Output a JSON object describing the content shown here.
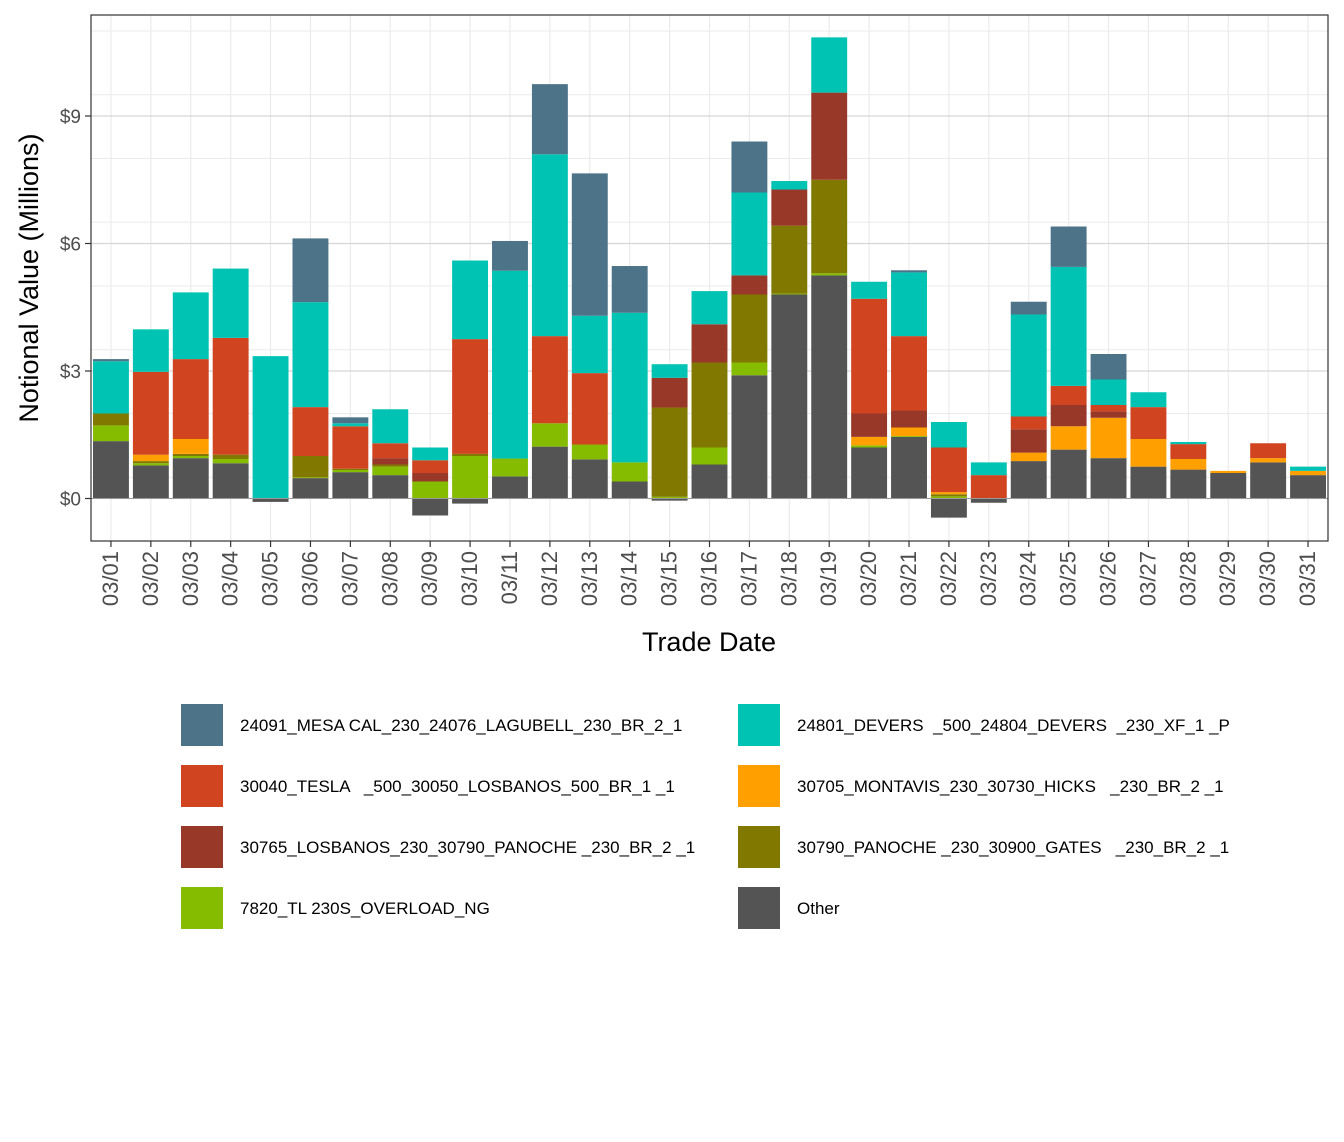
{
  "chart_data": {
    "type": "bar",
    "stacked": true,
    "title": "",
    "xlabel": "Trade Date",
    "ylabel": "Notional Value (Millions)",
    "ylim": [
      -1.0,
      11.0
    ],
    "y_ticks": [
      0,
      3,
      6,
      9
    ],
    "y_tick_labels": [
      "$0",
      "$3",
      "$6",
      "$9"
    ],
    "legend_position": "bottom",
    "categories": [
      "03/01",
      "03/02",
      "03/03",
      "03/04",
      "03/05",
      "03/06",
      "03/07",
      "03/08",
      "03/09",
      "03/10",
      "03/11",
      "03/12",
      "03/13",
      "03/14",
      "03/15",
      "03/16",
      "03/17",
      "03/18",
      "03/19",
      "03/20",
      "03/21",
      "03/22",
      "03/23",
      "03/24",
      "03/25",
      "03/26",
      "03/27",
      "03/28",
      "03/29",
      "03/30",
      "03/31"
    ],
    "series": [
      {
        "key": "other",
        "name": "Other",
        "color": "#545454",
        "values": [
          1.35,
          0.78,
          0.95,
          0.83,
          -0.08,
          0.48,
          0.62,
          0.55,
          -0.4,
          -0.12,
          0.52,
          1.22,
          0.92,
          0.4,
          -0.05,
          0.8,
          2.9,
          4.8,
          5.25,
          1.2,
          1.45,
          -0.45,
          -0.1,
          0.88,
          1.15,
          0.95,
          0.75,
          0.68,
          0.6,
          0.85,
          0.55
        ]
      },
      {
        "key": "7820",
        "name": "7820_TL 230S_OVERLOAD_NG",
        "color": "#85BC00",
        "values": [
          0.37,
          0.05,
          0.05,
          0.1,
          0,
          0.02,
          0.05,
          0.2,
          0.4,
          1.0,
          0.42,
          0.55,
          0.35,
          0.45,
          0.04,
          0.4,
          0.3,
          0.02,
          0.05,
          0.05,
          0.02,
          0.05,
          0,
          0,
          0,
          0,
          0,
          0,
          0,
          0,
          0
        ]
      },
      {
        "key": "30790",
        "name": "30790_PANOCHE _230_30900_GATES   _230_BR_2 _1",
        "color": "#817800",
        "values": [
          0.28,
          0.05,
          0.05,
          0.1,
          0,
          0.5,
          0.03,
          0.05,
          0,
          0.05,
          0,
          0,
          0,
          0,
          2.1,
          2.0,
          1.6,
          1.6,
          2.2,
          0,
          0,
          0.05,
          0,
          0,
          0,
          0,
          0,
          0,
          0,
          0,
          0
        ]
      },
      {
        "key": "30705",
        "name": "30705_MONTAVIS_230_30730_HICKS   _230_BR_2 _1",
        "color": "#FFA000",
        "values": [
          0,
          0.15,
          0.35,
          0,
          0,
          0,
          0,
          0,
          0,
          0,
          0,
          0,
          0,
          0,
          0,
          0,
          0,
          0,
          0,
          0.2,
          0.2,
          0.05,
          0,
          0.2,
          0.55,
          0.95,
          0.65,
          0.25,
          0.05,
          0.1,
          0.1
        ]
      },
      {
        "key": "30765",
        "name": "30765_LOSBANOS_230_30790_PANOCHE _230_BR_2 _1",
        "color": "#983828",
        "values": [
          0,
          0,
          0,
          0,
          0,
          0,
          0,
          0.15,
          0.2,
          0,
          0,
          0,
          0,
          0,
          0.7,
          0.9,
          0.45,
          0.85,
          2.05,
          0.55,
          0.4,
          0,
          0,
          0.55,
          0.5,
          0.15,
          0,
          0,
          0,
          0,
          0
        ]
      },
      {
        "key": "30040",
        "name": "30040_TESLA   _500_30050_LOSBANOS_500_BR_1 _1",
        "color": "#D04420",
        "values": [
          0,
          1.95,
          1.88,
          2.75,
          0,
          1.15,
          1.0,
          0.35,
          0.3,
          2.7,
          0,
          2.05,
          1.68,
          0,
          0,
          0,
          0,
          0,
          0,
          2.7,
          1.75,
          1.05,
          0.55,
          0.3,
          0.45,
          0.15,
          0.75,
          0.35,
          0,
          0.35,
          0
        ]
      },
      {
        "key": "24801",
        "name": "24801_DEVERS  _500_24804_DEVERS  _230_XF_1 _P",
        "color": "#00C3B3",
        "values": [
          1.23,
          1.0,
          1.57,
          1.63,
          3.35,
          2.47,
          0.07,
          0.8,
          0.3,
          1.85,
          4.42,
          4.28,
          1.35,
          3.52,
          0.32,
          0.78,
          1.95,
          0.2,
          1.3,
          0.4,
          1.5,
          0.6,
          0.3,
          2.4,
          2.8,
          0.6,
          0.35,
          0.05,
          0,
          0,
          0.1
        ]
      },
      {
        "key": "24091",
        "name": "24091_MESA CAL_230_24076_LAGUBELL_230_BR_2_1",
        "color": "#4D7388",
        "values": [
          0.05,
          0,
          0,
          0,
          0,
          1.5,
          0.14,
          0,
          0,
          0,
          0.7,
          1.65,
          3.35,
          1.1,
          0,
          0,
          1.2,
          0,
          0,
          0,
          0.05,
          0,
          0,
          0.3,
          0.95,
          0.6,
          0,
          0,
          0,
          0,
          0
        ]
      }
    ],
    "legend_order": [
      "24091",
      "24801",
      "30040",
      "30705",
      "30765",
      "30790",
      "7820",
      "other"
    ]
  }
}
